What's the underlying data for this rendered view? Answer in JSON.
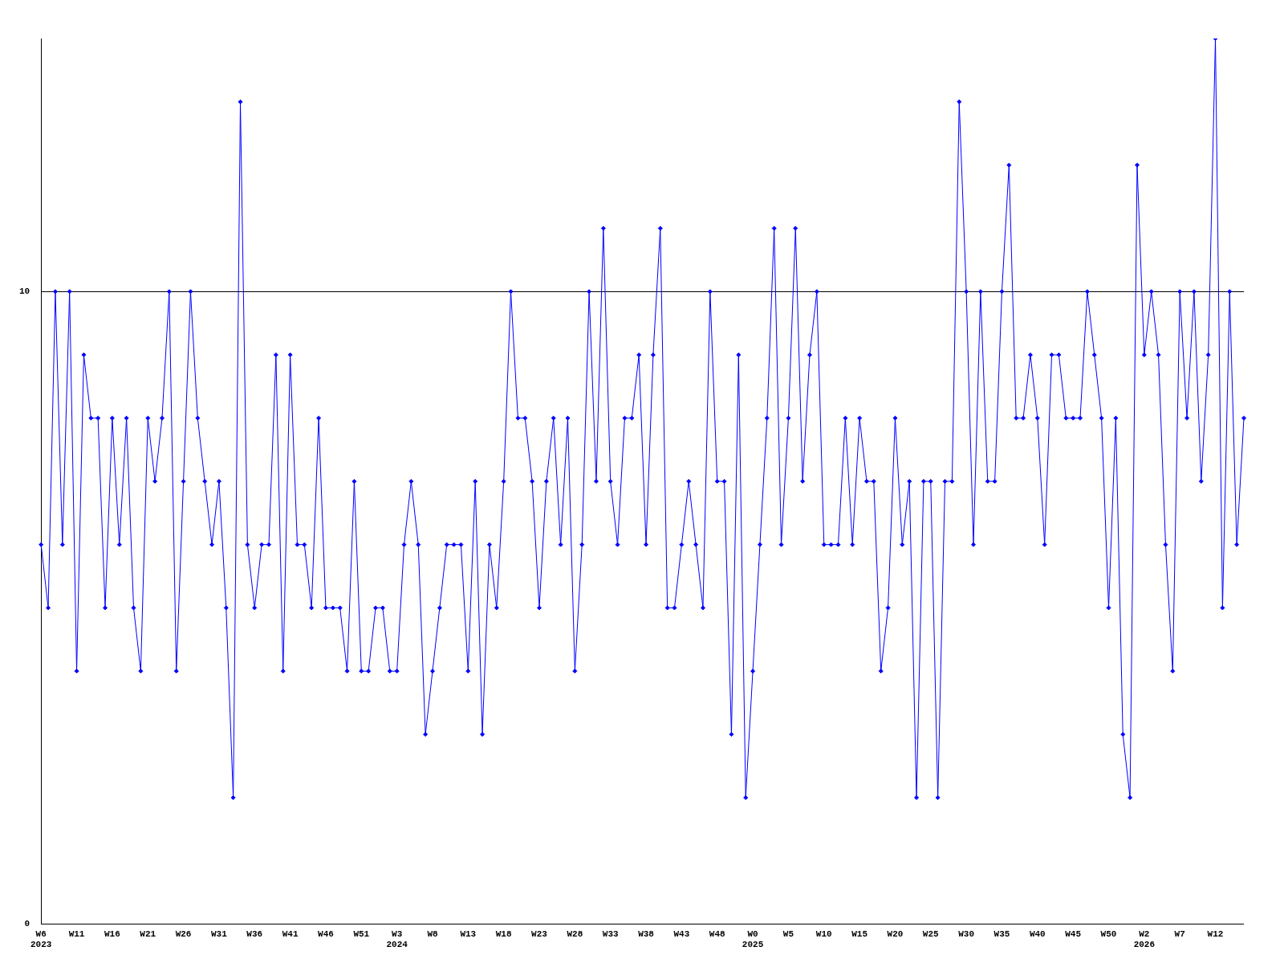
{
  "chart_data": {
    "type": "line",
    "categories": [
      "W6\n2023",
      null,
      null,
      null,
      null,
      "W11",
      null,
      null,
      null,
      null,
      "W16",
      null,
      null,
      null,
      null,
      "W21",
      null,
      null,
      null,
      null,
      "W26",
      null,
      null,
      null,
      null,
      "W31",
      null,
      null,
      null,
      null,
      "W36",
      null,
      null,
      null,
      null,
      "W41",
      null,
      null,
      null,
      null,
      "W46",
      null,
      null,
      null,
      null,
      "W51",
      null,
      null,
      null,
      null,
      "W3\n2024",
      null,
      null,
      null,
      null,
      "W8",
      null,
      null,
      null,
      null,
      "W13",
      null,
      null,
      null,
      null,
      "W18",
      null,
      null,
      null,
      null,
      "W23",
      null,
      null,
      null,
      null,
      "W28",
      null,
      null,
      null,
      null,
      "W33",
      null,
      null,
      null,
      null,
      "W38",
      null,
      null,
      null,
      null,
      "W43",
      null,
      null,
      null,
      null,
      "W48",
      null,
      null,
      null,
      null,
      "W0\n2025",
      null,
      null,
      null,
      null,
      "W5",
      null,
      null,
      null,
      null,
      "W10",
      null,
      null,
      null,
      null,
      "W15",
      null,
      null,
      null,
      null,
      "W20",
      null,
      null,
      null,
      null,
      "W25",
      null,
      null,
      null,
      null,
      "W30",
      null,
      null,
      null,
      null,
      "W35",
      null,
      null,
      null,
      null,
      "W40",
      null,
      null,
      null,
      null,
      "W45",
      null,
      null,
      null,
      null,
      "W50",
      null,
      null,
      null,
      null,
      "W2\n2026",
      null,
      null,
      null,
      null,
      "W7",
      null,
      null,
      null,
      null,
      "W12",
      null,
      null,
      null,
      null
    ],
    "series": [
      {
        "color": "#0000ff",
        "values": [
          6,
          5,
          10,
          6,
          10,
          4,
          9,
          8,
          8,
          5,
          8,
          6,
          8,
          5,
          4,
          8,
          7,
          8,
          10,
          4,
          7,
          10,
          8,
          7,
          6,
          7,
          5,
          2,
          13,
          6,
          5,
          6,
          6,
          9,
          4,
          9,
          6,
          6,
          5,
          8,
          5,
          5,
          5,
          4,
          7,
          4,
          4,
          5,
          5,
          4,
          4,
          6,
          7,
          6,
          3,
          4,
          5,
          6,
          6,
          6,
          4,
          7,
          3,
          6,
          5,
          7,
          10,
          8,
          8,
          7,
          5,
          7,
          8,
          6,
          8,
          4,
          6,
          10,
          7,
          11,
          7,
          6,
          8,
          8,
          9,
          6,
          9,
          11,
          5,
          5,
          6,
          7,
          6,
          5,
          10,
          7,
          7,
          3,
          9,
          2,
          4,
          6,
          8,
          11,
          6,
          8,
          11,
          7,
          9,
          10,
          6,
          6,
          6,
          8,
          6,
          8,
          7,
          7,
          4,
          5,
          8,
          6,
          7,
          2,
          7,
          7,
          2,
          7,
          7,
          13,
          10,
          6,
          10,
          7,
          7,
          10,
          12,
          8,
          8,
          9,
          8,
          6,
          9,
          9,
          8,
          8,
          8,
          10,
          9,
          8,
          5,
          8,
          3,
          2,
          12,
          9,
          10,
          9,
          6,
          4,
          10,
          8,
          10,
          7,
          9,
          14,
          5,
          10,
          6,
          8
        ]
      }
    ],
    "ylim": [
      0,
      14
    ],
    "yticks": [
      0,
      10
    ],
    "grid": "y",
    "marker": "diamond",
    "line_style": "solid",
    "legend": false
  }
}
